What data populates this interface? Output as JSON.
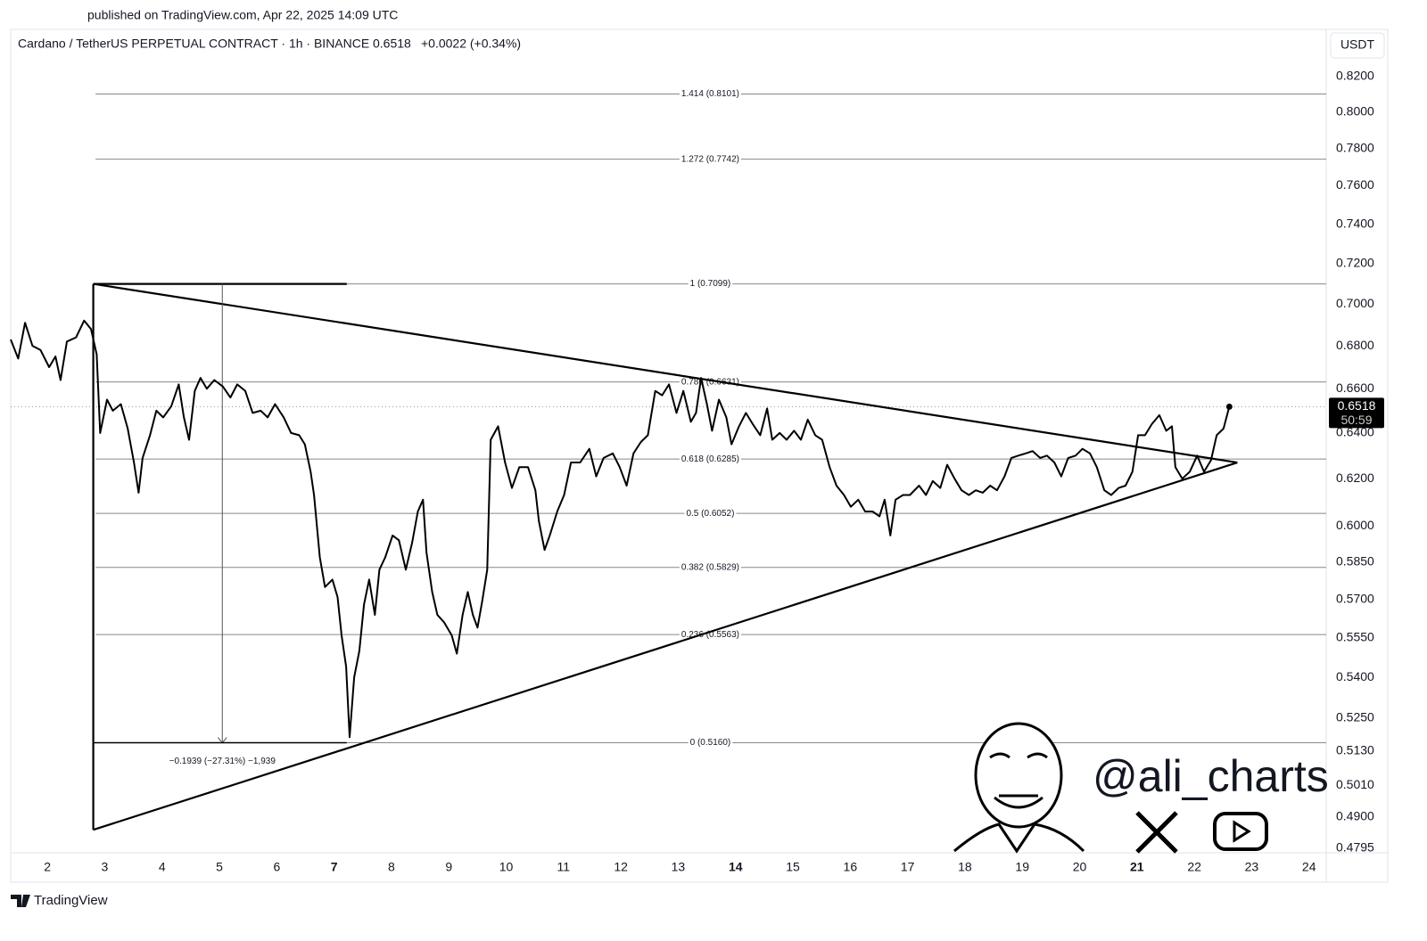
{
  "published": "published on TradingView.com, Apr 22, 2025 14:09 UTC",
  "footer": "TradingView",
  "watermark": "@ali_charts",
  "chart_data": {
    "type": "line",
    "title": "Cardano / TetherUS PERPETUAL CONTRACT · 1h · BINANCE",
    "change": "+0.0022 (+0.34%)",
    "currency": "USDT",
    "countdown": "50:59",
    "log_scale": true,
    "xlim": [
      1.36,
      24.3
    ],
    "xticks": [
      2,
      3,
      4,
      5,
      6,
      7,
      8,
      9,
      10,
      11,
      12,
      13,
      14,
      15,
      16,
      17,
      18,
      19,
      20,
      21,
      22,
      23,
      24
    ],
    "xticks_bold": [
      7,
      14,
      21
    ],
    "ylim": [
      0.4786,
      0.8473
    ],
    "yticks": [
      {
        "value": 0.82,
        "label": "0.8200"
      },
      {
        "value": 0.8,
        "label": "0.8000"
      },
      {
        "value": 0.78,
        "label": "0.7800"
      },
      {
        "value": 0.76,
        "label": "0.7600"
      },
      {
        "value": 0.74,
        "label": "0.7400"
      },
      {
        "value": 0.72,
        "label": "0.7200"
      },
      {
        "value": 0.7,
        "label": "0.7000"
      },
      {
        "value": 0.68,
        "label": "0.6800"
      },
      {
        "value": 0.66,
        "label": "0.6600"
      },
      {
        "value": 0.64,
        "label": "0.6400"
      },
      {
        "value": 0.62,
        "label": "0.6200"
      },
      {
        "value": 0.6,
        "label": "0.6000"
      },
      {
        "value": 0.585,
        "label": "0.5850"
      },
      {
        "value": 0.57,
        "label": "0.5700"
      },
      {
        "value": 0.555,
        "label": "0.5550"
      },
      {
        "value": 0.54,
        "label": "0.5400"
      },
      {
        "value": 0.525,
        "label": "0.5250"
      },
      {
        "value": 0.513,
        "label": "0.5130"
      },
      {
        "value": 0.501,
        "label": "0.5010"
      },
      {
        "value": 0.49,
        "label": "0.4900"
      },
      {
        "value": 0.4795,
        "label": "0.4795"
      }
    ],
    "fib_x_start": 2.84,
    "fib_label_x": 13.56,
    "fib_levels": [
      {
        "value": 0.8101,
        "label": "1.414 (0.8101)"
      },
      {
        "value": 0.7742,
        "label": "1.272 (0.7742)"
      },
      {
        "value": 0.7099,
        "label": "1 (0.7099)"
      },
      {
        "value": 0.6631,
        "label": "0.786 (0.6631)"
      },
      {
        "value": 0.6285,
        "label": "0.618 (0.6285)"
      },
      {
        "value": 0.6052,
        "label": "0.5 (0.6052)"
      },
      {
        "value": 0.5829,
        "label": "0.382 (0.5829)"
      },
      {
        "value": 0.5563,
        "label": "0.236 (0.5563)"
      },
      {
        "value": 0.516,
        "label": "0 (0.5160)"
      }
    ],
    "trendlines": [
      {
        "x": [
          2.8,
          22.75
        ],
        "y": [
          0.7099,
          0.627
        ]
      },
      {
        "x": [
          2.8,
          22.75
        ],
        "y": [
          0.4857,
          0.627
        ]
      },
      {
        "x": [
          2.8,
          2.8
        ],
        "y": [
          0.7099,
          0.4857
        ]
      },
      {
        "x": [
          2.8,
          7.22
        ],
        "y": [
          0.7099,
          0.7099
        ]
      }
    ],
    "measure": {
      "x": 5.05,
      "x_range": [
        2.8,
        7.22
      ],
      "from": 0.7099,
      "to": 0.516,
      "label": "−0.1939 (−27.31%) −1,939"
    },
    "x": [
      1.36,
      1.49,
      1.61,
      1.74,
      1.88,
      2.03,
      2.14,
      2.23,
      2.34,
      2.5,
      2.64,
      2.76,
      2.86,
      2.92,
      3.04,
      3.14,
      3.28,
      3.4,
      3.51,
      3.59,
      3.66,
      3.79,
      3.9,
      4.02,
      4.16,
      4.29,
      4.38,
      4.47,
      4.57,
      4.67,
      4.78,
      4.91,
      5.06,
      5.19,
      5.31,
      5.45,
      5.58,
      5.72,
      5.84,
      5.97,
      6.12,
      6.25,
      6.39,
      6.49,
      6.59,
      6.65,
      6.75,
      6.84,
      6.97,
      7.06,
      7.13,
      7.21,
      7.27,
      7.35,
      7.44,
      7.52,
      7.61,
      7.71,
      7.79,
      7.89,
      8.02,
      8.13,
      8.25,
      8.36,
      8.46,
      8.55,
      8.61,
      8.71,
      8.8,
      8.92,
      9.05,
      9.14,
      9.24,
      9.33,
      9.42,
      9.5,
      9.58,
      9.67,
      9.73,
      9.86,
      9.98,
      10.1,
      10.23,
      10.38,
      10.51,
      10.57,
      10.67,
      10.76,
      10.89,
      11.01,
      11.13,
      11.29,
      11.45,
      11.57,
      11.7,
      11.86,
      11.98,
      12.1,
      12.22,
      12.35,
      12.47,
      12.6,
      12.72,
      12.84,
      12.97,
      13.09,
      13.22,
      13.31,
      13.4,
      13.5,
      13.59,
      13.71,
      13.84,
      13.93,
      14.06,
      14.18,
      14.3,
      14.43,
      14.55,
      14.64,
      14.77,
      14.89,
      15.02,
      15.14,
      15.26,
      15.39,
      15.51,
      15.64,
      15.76,
      15.89,
      16.01,
      16.14,
      16.26,
      16.39,
      16.51,
      16.6,
      16.7,
      16.79,
      16.92,
      17.04,
      17.2,
      17.32,
      17.44,
      17.57,
      17.69,
      17.82,
      17.94,
      18.07,
      18.19,
      18.31,
      18.44,
      18.56,
      18.69,
      18.81,
      18.93,
      19.06,
      19.18,
      19.31,
      19.43,
      19.56,
      19.68,
      19.8,
      19.93,
      20.05,
      20.18,
      20.3,
      20.43,
      20.55,
      20.68,
      20.8,
      20.92,
      21.02,
      21.14,
      21.26,
      21.39,
      21.51,
      21.61,
      21.67,
      21.79,
      21.92,
      22.05,
      22.17,
      22.29,
      22.39,
      22.51,
      22.61
    ],
    "series": [
      {
        "color": "#000000",
        "values": [
          0.683,
          0.674,
          0.691,
          0.68,
          0.678,
          0.67,
          0.675,
          0.664,
          0.682,
          0.684,
          0.692,
          0.688,
          0.676,
          0.64,
          0.655,
          0.65,
          0.653,
          0.642,
          0.627,
          0.614,
          0.629,
          0.639,
          0.65,
          0.647,
          0.652,
          0.662,
          0.647,
          0.637,
          0.659,
          0.665,
          0.66,
          0.664,
          0.661,
          0.656,
          0.662,
          0.659,
          0.649,
          0.65,
          0.647,
          0.653,
          0.647,
          0.64,
          0.639,
          0.635,
          0.623,
          0.613,
          0.587,
          0.575,
          0.578,
          0.571,
          0.556,
          0.544,
          0.518,
          0.54,
          0.55,
          0.568,
          0.578,
          0.564,
          0.582,
          0.587,
          0.596,
          0.594,
          0.582,
          0.593,
          0.606,
          0.611,
          0.589,
          0.573,
          0.564,
          0.561,
          0.556,
          0.549,
          0.564,
          0.573,
          0.564,
          0.559,
          0.569,
          0.582,
          0.637,
          0.643,
          0.627,
          0.616,
          0.625,
          0.625,
          0.615,
          0.602,
          0.59,
          0.596,
          0.606,
          0.613,
          0.627,
          0.627,
          0.633,
          0.621,
          0.629,
          0.631,
          0.625,
          0.617,
          0.631,
          0.636,
          0.639,
          0.659,
          0.657,
          0.662,
          0.649,
          0.659,
          0.645,
          0.649,
          0.665,
          0.653,
          0.641,
          0.655,
          0.647,
          0.635,
          0.643,
          0.649,
          0.644,
          0.639,
          0.651,
          0.637,
          0.64,
          0.637,
          0.641,
          0.637,
          0.646,
          0.639,
          0.637,
          0.625,
          0.617,
          0.613,
          0.608,
          0.611,
          0.606,
          0.606,
          0.604,
          0.611,
          0.596,
          0.611,
          0.613,
          0.613,
          0.617,
          0.613,
          0.619,
          0.616,
          0.626,
          0.62,
          0.615,
          0.613,
          0.615,
          0.614,
          0.617,
          0.615,
          0.621,
          0.629,
          0.63,
          0.631,
          0.632,
          0.629,
          0.63,
          0.627,
          0.621,
          0.629,
          0.63,
          0.633,
          0.631,
          0.625,
          0.615,
          0.613,
          0.616,
          0.617,
          0.623,
          0.639,
          0.639,
          0.644,
          0.648,
          0.641,
          0.643,
          0.625,
          0.62,
          0.623,
          0.63,
          0.623,
          0.628,
          0.639,
          0.642,
          0.6518
        ]
      }
    ]
  }
}
